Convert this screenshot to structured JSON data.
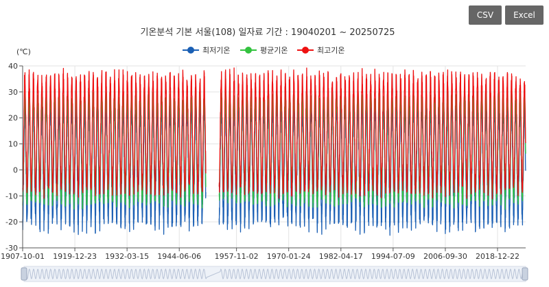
{
  "toolbar": {
    "csv_label": "CSV",
    "excel_label": "Excel"
  },
  "chart_data": {
    "type": "line",
    "title": "기온분석 기본 서울(108) 일자료 기간 : 19040201 ~ 20250725",
    "ylabel": "(℃)",
    "xlabel": "",
    "ylim": [
      -30,
      40
    ],
    "yticks": [
      40,
      30,
      20,
      10,
      0,
      -10,
      -20,
      -30
    ],
    "xticks": [
      "1907-10-01",
      "1919-12-23",
      "1932-03-15",
      "1944-06-06",
      "1957-11-02",
      "1970-01-24",
      "1982-04-17",
      "1994-07-09",
      "2006-09-30",
      "2018-12-22"
    ],
    "x_range": [
      "1907-10-01",
      "2025-07-25"
    ],
    "gap": [
      "1950-09-01",
      "1953-10-01"
    ],
    "grid": true,
    "legend_position": "top-center",
    "series": [
      {
        "name": "최저기온",
        "color": "#1a5fb4",
        "annual_low": -17,
        "annual_high": 24
      },
      {
        "name": "평균기온",
        "color": "#33c23f",
        "annual_low": -10,
        "annual_high": 28
      },
      {
        "name": "최고기온",
        "color": "#ee1111",
        "annual_low": -6,
        "annual_high": 34
      }
    ],
    "zoom_slider": {
      "range_start": 0,
      "range_end": 1
    }
  }
}
